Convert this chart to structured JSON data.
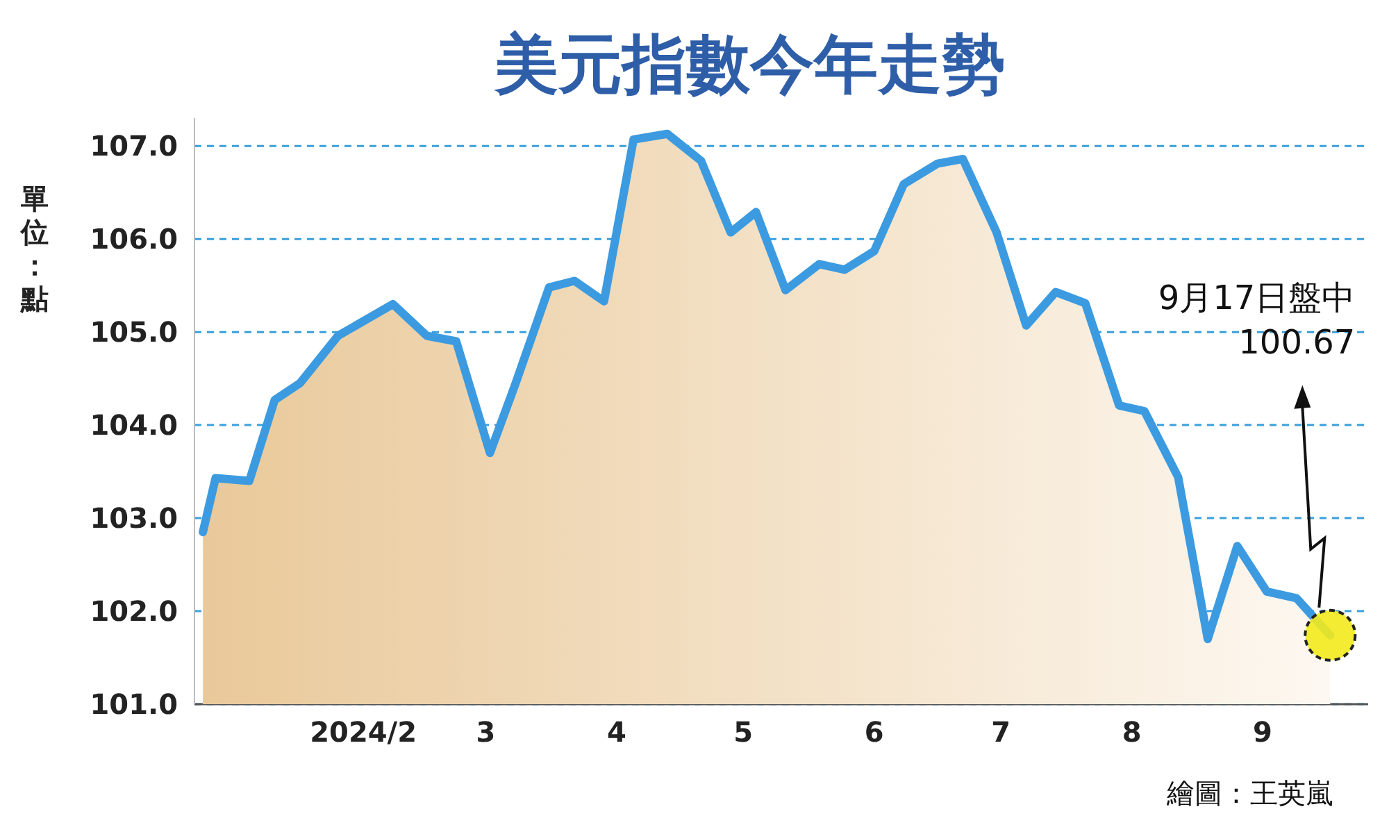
{
  "chart_data": {
    "type": "area",
    "title": "美元指數今年走勢",
    "ylabel": "單位：點",
    "x": [
      "2023-12-25",
      "2023-12-28",
      "2024-01-05",
      "2024-01-11",
      "2024-01-17",
      "2024-01-26",
      "2024-02-08",
      "2024-02-16",
      "2024-02-23",
      "2024-03-02",
      "2024-03-08",
      "2024-03-16",
      "2024-03-22",
      "2024-03-29",
      "2024-04-05",
      "2024-04-13",
      "2024-04-21",
      "2024-04-28",
      "2024-05-04",
      "2024-05-11",
      "2024-05-19",
      "2024-05-25",
      "2024-06-01",
      "2024-06-08",
      "2024-06-16",
      "2024-06-22",
      "2024-06-30",
      "2024-07-07",
      "2024-07-14",
      "2024-07-21",
      "2024-07-29",
      "2024-08-04",
      "2024-08-12",
      "2024-08-19",
      "2024-08-26",
      "2024-09-02",
      "2024-09-09",
      "2024-09-17"
    ],
    "series": [
      {
        "color": "#3c9be0",
        "values": [
          102.85,
          103.43,
          103.4,
          104.27,
          104.45,
          104.96,
          105.3,
          104.96,
          104.9,
          103.7,
          104.44,
          105.48,
          105.55,
          105.33,
          107.07,
          107.13,
          106.84,
          106.07,
          106.29,
          105.45,
          105.73,
          105.67,
          105.87,
          106.59,
          106.81,
          106.86,
          106.07,
          105.07,
          105.43,
          105.31,
          104.21,
          104.15,
          103.44,
          101.7,
          102.7,
          102.21,
          102.14,
          101.74
        ]
      }
    ],
    "xlim": [
      "2023-12-23",
      "2024-09-26"
    ],
    "xticks": [
      {
        "value": "2024-02-01",
        "label": "2024/2"
      },
      {
        "value": "2024-03-01",
        "label": "3"
      },
      {
        "value": "2024-04-01",
        "label": "4"
      },
      {
        "value": "2024-05-01",
        "label": "5"
      },
      {
        "value": "2024-06-01",
        "label": "6"
      },
      {
        "value": "2024-07-01",
        "label": "7"
      },
      {
        "value": "2024-08-01",
        "label": "8"
      },
      {
        "value": "2024-09-01",
        "label": "9"
      }
    ],
    "ylim": [
      101,
      107.3
    ],
    "yticks": [
      {
        "value": 101,
        "label": "101.0"
      },
      {
        "value": 102,
        "label": "102.0"
      },
      {
        "value": 103,
        "label": "103.0"
      },
      {
        "value": 104,
        "label": "104.0"
      },
      {
        "value": 105,
        "label": "105.0"
      },
      {
        "value": 106,
        "label": "106.0"
      },
      {
        "value": 107,
        "label": "107.0"
      }
    ],
    "grid": "y",
    "marker": "none",
    "line_style": "solid",
    "annotations": [
      "9月17日盤中\n100.67",
      "繪圖：王英嵐"
    ]
  }
}
